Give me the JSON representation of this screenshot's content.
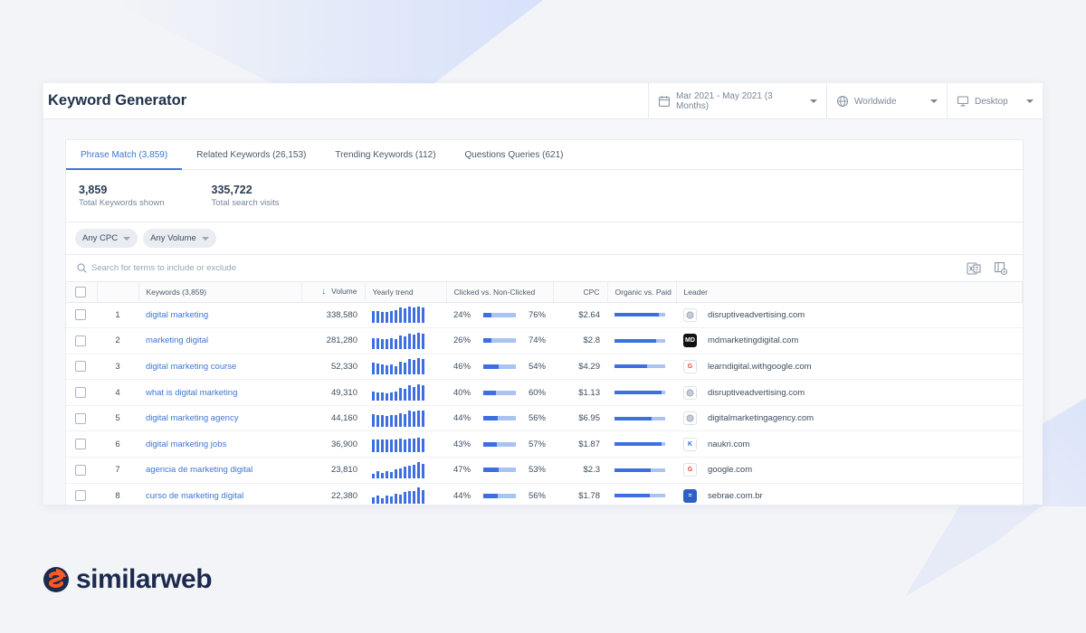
{
  "header": {
    "title": "Keyword Generator",
    "date_range": "Mar 2021 - May 2021 (3 Months)",
    "country": "Worldwide",
    "device": "Desktop"
  },
  "tabs": [
    {
      "label": "Phrase Match (3,859)",
      "active": true
    },
    {
      "label": "Related Keywords (26,153)",
      "active": false
    },
    {
      "label": "Trending Keywords (112)",
      "active": false
    },
    {
      "label": "Questions Queries (621)",
      "active": false
    }
  ],
  "stats": [
    {
      "value": "3,859",
      "label": "Total Keywords shown"
    },
    {
      "value": "335,722",
      "label": "Total search visits"
    }
  ],
  "filters": [
    {
      "label": "Any CPC"
    },
    {
      "label": "Any Volume"
    }
  ],
  "search": {
    "placeholder": "Search for terms to include or exclude"
  },
  "columns": {
    "keywords": "Keywords (3,859)",
    "volume": "Volume",
    "trend": "Yearly trend",
    "clicked": "Clicked vs. Non-Clicked",
    "cpc": "CPC",
    "organic": "Organic vs. Paid",
    "leader": "Leader"
  },
  "rows": [
    {
      "rank": "1",
      "keyword": "digital marketing",
      "volume": "338,580",
      "trend": [
        0.7,
        0.7,
        0.65,
        0.65,
        0.7,
        0.75,
        0.95,
        0.9,
        1,
        0.95,
        1,
        0.95
      ],
      "clicked": "24%",
      "non_clicked": "76%",
      "cpc": "$2.64",
      "organic_share": 0.88,
      "leader": "disruptiveadvertising.com",
      "leader_icon": "globe-icon",
      "leader_badge": ""
    },
    {
      "rank": "2",
      "keyword": "marketing digital",
      "volume": "281,280",
      "trend": [
        0.65,
        0.65,
        0.6,
        0.6,
        0.65,
        0.6,
        0.85,
        0.75,
        0.95,
        0.9,
        1,
        0.95
      ],
      "clicked": "26%",
      "non_clicked": "74%",
      "cpc": "$2.8",
      "organic_share": 0.82,
      "leader": "mdmarketingdigital.com",
      "leader_icon": "md-logo-icon",
      "leader_badge": "MD"
    },
    {
      "rank": "3",
      "keyword": "digital marketing course",
      "volume": "52,330",
      "trend": [
        0.7,
        0.65,
        0.6,
        0.55,
        0.6,
        0.5,
        0.8,
        0.7,
        0.95,
        0.9,
        1,
        0.95
      ],
      "clicked": "46%",
      "non_clicked": "54%",
      "cpc": "$4.29",
      "organic_share": 0.65,
      "leader": "learndigital.withgoogle.com",
      "leader_icon": "google-icon",
      "leader_badge": "G"
    },
    {
      "rank": "4",
      "keyword": "what is digital marketing",
      "volume": "49,310",
      "trend": [
        0.55,
        0.5,
        0.5,
        0.45,
        0.5,
        0.55,
        0.8,
        0.7,
        0.95,
        0.85,
        1,
        0.95
      ],
      "clicked": "40%",
      "non_clicked": "60%",
      "cpc": "$1.13",
      "organic_share": 0.92,
      "leader": "disruptiveadvertising.com",
      "leader_icon": "globe-icon",
      "leader_badge": ""
    },
    {
      "rank": "5",
      "keyword": "digital marketing agency",
      "volume": "44,160",
      "trend": [
        0.75,
        0.7,
        0.7,
        0.65,
        0.7,
        0.7,
        0.85,
        0.8,
        1,
        0.95,
        1,
        1
      ],
      "clicked": "44%",
      "non_clicked": "56%",
      "cpc": "$6.95",
      "organic_share": 0.74,
      "leader": "digitalmarketingagency.com",
      "leader_icon": "globe-icon",
      "leader_badge": ""
    },
    {
      "rank": "6",
      "keyword": "digital marketing jobs",
      "volume": "36,900",
      "trend": [
        0.75,
        0.8,
        0.8,
        0.75,
        0.8,
        0.8,
        0.85,
        0.8,
        0.85,
        0.85,
        0.9,
        0.85
      ],
      "clicked": "43%",
      "non_clicked": "57%",
      "cpc": "$1.87",
      "organic_share": 0.92,
      "leader": "naukri.com",
      "leader_icon": "naukri-icon",
      "leader_badge": "K"
    },
    {
      "rank": "7",
      "keyword": "agencia de marketing digital",
      "volume": "23,810",
      "trend": [
        0.3,
        0.45,
        0.35,
        0.45,
        0.4,
        0.55,
        0.6,
        0.7,
        0.8,
        0.85,
        1,
        0.9
      ],
      "clicked": "47%",
      "non_clicked": "53%",
      "cpc": "$2.3",
      "organic_share": 0.72,
      "leader": "google.com",
      "leader_icon": "google-icon",
      "leader_badge": "G"
    },
    {
      "rank": "8",
      "keyword": "curso de marketing digital",
      "volume": "22,380",
      "trend": [
        0.4,
        0.5,
        0.35,
        0.5,
        0.45,
        0.6,
        0.55,
        0.7,
        0.8,
        0.75,
        1,
        0.85
      ],
      "clicked": "44%",
      "non_clicked": "56%",
      "cpc": "$1.78",
      "organic_share": 0.7,
      "leader": "sebrae.com.br",
      "leader_icon": "sebrae-icon",
      "leader_badge": "="
    }
  ],
  "brand": {
    "name": "similarweb"
  },
  "colors": {
    "accent": "#3c77d4",
    "bar": "#3d6fe3",
    "bar_light": "#a9c3f3",
    "brand_orange": "#ff5a1f",
    "brand_navy": "#1b2a4e"
  }
}
